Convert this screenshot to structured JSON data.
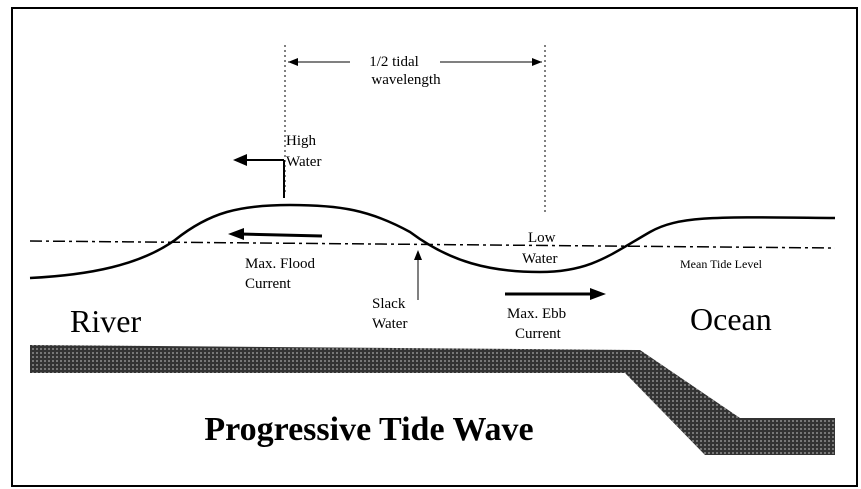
{
  "title": "Progressive Tide Wave",
  "labels": {
    "wavelength_1": "1/2 tidal",
    "wavelength_2": "wavelength",
    "high_water_1": "High",
    "high_water_2": "Water",
    "low_water_1": "Low",
    "low_water_2": "Water",
    "flood_1": "Max. Flood",
    "flood_2": "Current",
    "slack_1": "Slack",
    "slack_2": "Water",
    "ebb_1": "Max. Ebb",
    "ebb_2": "Current",
    "mean_tide": "Mean Tide Level",
    "river": "River",
    "ocean": "Ocean"
  }
}
